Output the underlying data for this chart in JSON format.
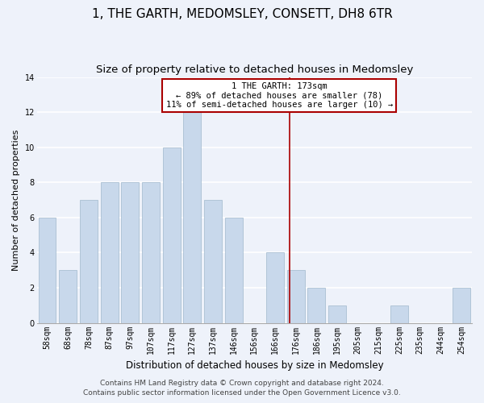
{
  "title": "1, THE GARTH, MEDOMSLEY, CONSETT, DH8 6TR",
  "subtitle": "Size of property relative to detached houses in Medomsley",
  "xlabel": "Distribution of detached houses by size in Medomsley",
  "ylabel": "Number of detached properties",
  "categories": [
    "58sqm",
    "68sqm",
    "78sqm",
    "87sqm",
    "97sqm",
    "107sqm",
    "117sqm",
    "127sqm",
    "137sqm",
    "146sqm",
    "156sqm",
    "166sqm",
    "176sqm",
    "186sqm",
    "195sqm",
    "205sqm",
    "215sqm",
    "225sqm",
    "235sqm",
    "244sqm",
    "254sqm"
  ],
  "values": [
    6,
    3,
    7,
    8,
    8,
    8,
    10,
    12,
    7,
    6,
    0,
    4,
    3,
    2,
    1,
    0,
    0,
    1,
    0,
    0,
    2
  ],
  "bar_color": "#c8d8eb",
  "bar_edge_color": "#a0b8cc",
  "vline_color": "#aa0000",
  "annotation_text": "1 THE GARTH: 173sqm\n← 89% of detached houses are smaller (78)\n11% of semi-detached houses are larger (10) →",
  "annotation_box_color": "white",
  "annotation_box_edge_color": "#aa0000",
  "ylim": [
    0,
    14
  ],
  "yticks": [
    0,
    2,
    4,
    6,
    8,
    10,
    12,
    14
  ],
  "background_color": "#eef2fa",
  "grid_color": "#ffffff",
  "footer1": "Contains HM Land Registry data © Crown copyright and database right 2024.",
  "footer2": "Contains public sector information licensed under the Open Government Licence v3.0.",
  "title_fontsize": 11,
  "subtitle_fontsize": 9.5,
  "xlabel_fontsize": 8.5,
  "ylabel_fontsize": 8,
  "tick_fontsize": 7,
  "annotation_fontsize": 7.5,
  "footer_fontsize": 6.5,
  "cat_values": [
    58,
    68,
    78,
    87,
    97,
    107,
    117,
    127,
    137,
    146,
    156,
    166,
    176,
    186,
    195,
    205,
    215,
    225,
    235,
    244,
    254
  ],
  "vline_sqm": 173
}
